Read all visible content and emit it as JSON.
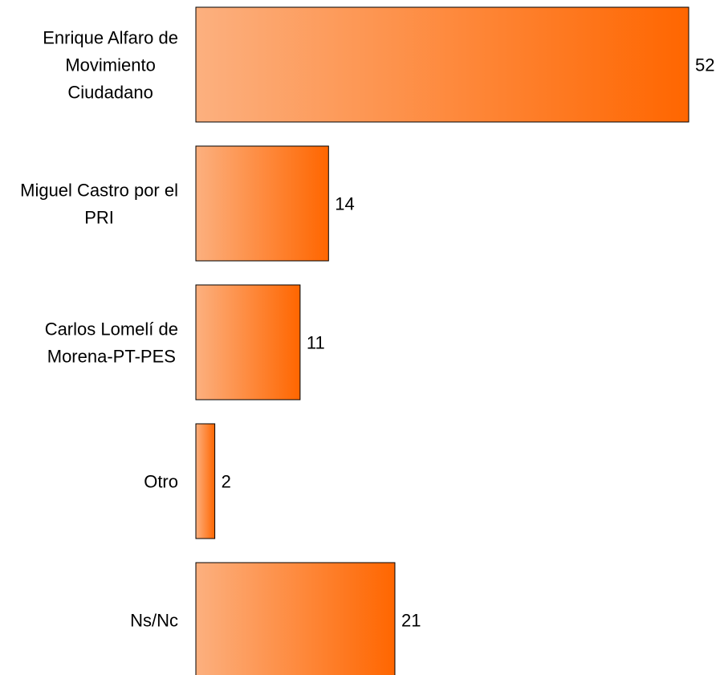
{
  "chart_data": {
    "type": "bar",
    "orientation": "horizontal",
    "categories": [
      "Enrique Alfaro de Movimiento Ciudadano",
      "Miguel Castro por el PRI",
      "Carlos Lomelí de Morena-PT-PES",
      "Otro",
      "Ns/Nc"
    ],
    "category_lines": [
      [
        "Enrique Alfaro de",
        "Movimiento",
        "Ciudadano"
      ],
      [
        "Miguel Castro por el",
        "PRI"
      ],
      [
        "Carlos Lomelí de",
        "Morena-PT-PES"
      ],
      [
        "Otro"
      ],
      [
        "Ns/Nc"
      ]
    ],
    "values": [
      52,
      14,
      11,
      2,
      21
    ],
    "value_labels": [
      "52",
      "14",
      "11",
      "2",
      "21"
    ],
    "title": "",
    "xlabel": "",
    "ylabel": "",
    "xlim": [
      0,
      52
    ],
    "grid": false,
    "legend": "none",
    "colors": {
      "gradient_start": "#fcb07f",
      "gradient_end": "#ff6600",
      "bar_stroke": "#000000",
      "text": "#000000"
    }
  }
}
